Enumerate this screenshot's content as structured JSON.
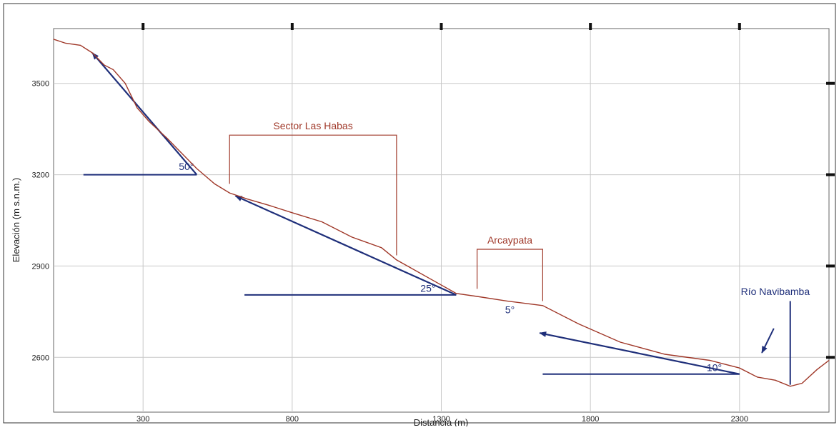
{
  "chart_data": {
    "type": "line",
    "xlabel": "Distancia (m)",
    "ylabel": "Elevación (m s.n.m.)",
    "xlim": [
      0,
      2600
    ],
    "ylim": [
      2420,
      3680
    ],
    "xticks": [
      300,
      800,
      1300,
      1800,
      2300
    ],
    "yticks": [
      2600,
      2900,
      3200,
      3500
    ],
    "grid": true,
    "colors": {
      "profile": "#a0392a",
      "annotation": "#1f2f7a",
      "bracket": "#a0392a",
      "grid": "#c8c8c8"
    },
    "series": [
      {
        "values": [
          {
            "x": 0,
            "y": 3645
          },
          {
            "x": 40,
            "y": 3632
          },
          {
            "x": 90,
            "y": 3625
          },
          {
            "x": 130,
            "y": 3600
          },
          {
            "x": 170,
            "y": 3560
          },
          {
            "x": 200,
            "y": 3545
          },
          {
            "x": 240,
            "y": 3500
          },
          {
            "x": 280,
            "y": 3420
          },
          {
            "x": 320,
            "y": 3375
          },
          {
            "x": 380,
            "y": 3320
          },
          {
            "x": 420,
            "y": 3280
          },
          {
            "x": 480,
            "y": 3220
          },
          {
            "x": 540,
            "y": 3170
          },
          {
            "x": 590,
            "y": 3140
          },
          {
            "x": 650,
            "y": 3120
          },
          {
            "x": 720,
            "y": 3100
          },
          {
            "x": 800,
            "y": 3075
          },
          {
            "x": 900,
            "y": 3045
          },
          {
            "x": 1000,
            "y": 2995
          },
          {
            "x": 1100,
            "y": 2960
          },
          {
            "x": 1150,
            "y": 2920
          },
          {
            "x": 1250,
            "y": 2865
          },
          {
            "x": 1350,
            "y": 2810
          },
          {
            "x": 1420,
            "y": 2800
          },
          {
            "x": 1520,
            "y": 2785
          },
          {
            "x": 1640,
            "y": 2770
          },
          {
            "x": 1760,
            "y": 2710
          },
          {
            "x": 1900,
            "y": 2650
          },
          {
            "x": 2050,
            "y": 2610
          },
          {
            "x": 2200,
            "y": 2590
          },
          {
            "x": 2300,
            "y": 2565
          },
          {
            "x": 2360,
            "y": 2535
          },
          {
            "x": 2420,
            "y": 2525
          },
          {
            "x": 2470,
            "y": 2505
          },
          {
            "x": 2510,
            "y": 2515
          },
          {
            "x": 2560,
            "y": 2560
          },
          {
            "x": 2600,
            "y": 2590
          }
        ]
      }
    ],
    "annotations": {
      "brackets": [
        {
          "label": "Sector Las Habas",
          "x1": 590,
          "x2": 1150,
          "y_top": 3330,
          "y1_bottom": 3170,
          "y2_bottom": 2935
        },
        {
          "label": "Arcaypata",
          "x1": 1420,
          "x2": 1640,
          "y_top": 2955,
          "y1_bottom": 2825,
          "y2_bottom": 2785
        }
      ],
      "slopes": [
        {
          "label": "50°",
          "tip": {
            "x": 130,
            "y": 3600
          },
          "vertex": {
            "x": 480,
            "y": 3200
          },
          "base_start": {
            "x": 100,
            "y": 3200
          },
          "label_at": {
            "x": 420,
            "y": 3215
          }
        },
        {
          "label": "25°",
          "tip": {
            "x": 610,
            "y": 3130
          },
          "vertex": {
            "x": 1350,
            "y": 2805
          },
          "base_start": {
            "x": 640,
            "y": 2805
          },
          "label_at": {
            "x": 1230,
            "y": 2815
          }
        },
        {
          "label": "10°",
          "tip": {
            "x": 1630,
            "y": 2680
          },
          "vertex": {
            "x": 2300,
            "y": 2545
          },
          "base_start": {
            "x": 1640,
            "y": 2545
          },
          "label_at": {
            "x": 2190,
            "y": 2555
          }
        }
      ],
      "angle_labels": [
        {
          "label": "5°",
          "at": {
            "x": 1530,
            "y": 2745
          }
        }
      ],
      "river": {
        "label": "Río Navibamba",
        "label_at": {
          "x": 2420,
          "y": 2805
        },
        "line_x": 2470,
        "line_top": 2785,
        "line_bottom": 2510,
        "arrow_from": {
          "x": 2415,
          "y": 2695
        },
        "arrow_to": {
          "x": 2375,
          "y": 2615
        }
      }
    }
  }
}
